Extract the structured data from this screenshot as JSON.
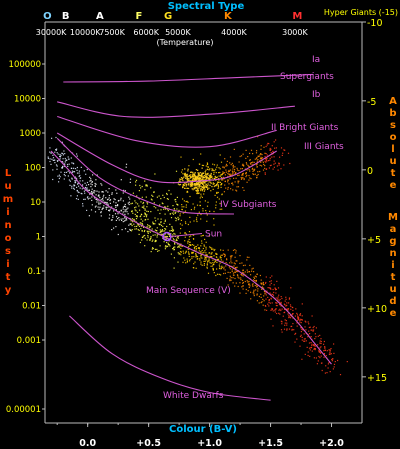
{
  "chart_data": {
    "type": "scatter",
    "title": "Spectral Type",
    "xlabel": "Colour (B-V)",
    "ylabel_left": "Luminosity",
    "ylabel_right": "Absolute Magnitude",
    "temperature_label": "(Temperature)",
    "hyper_giants_label": "Hyper Giants (-15)",
    "xlim": [
      -0.35,
      2.25
    ],
    "ylim_log_luminosity": [
      1e-05,
      100000
    ],
    "x_ticks": [
      {
        "value": 0.0,
        "label": "0.0"
      },
      {
        "value": 0.5,
        "label": "+0.5"
      },
      {
        "value": 1.0,
        "label": "+1.0"
      },
      {
        "value": 1.5,
        "label": "+1.5"
      },
      {
        "value": 2.0,
        "label": "+2.0"
      }
    ],
    "left_ticks": [
      {
        "value": 100000,
        "label": "100000"
      },
      {
        "value": 10000,
        "label": "10000"
      },
      {
        "value": 1000,
        "label": "1000"
      },
      {
        "value": 100,
        "label": "100"
      },
      {
        "value": 10,
        "label": "10"
      },
      {
        "value": 1,
        "label": "1"
      },
      {
        "value": 0.1,
        "label": "0.1"
      },
      {
        "value": 0.01,
        "label": "0.01"
      },
      {
        "value": 0.001,
        "label": "0.001"
      },
      {
        "value": 1e-05,
        "label": "0.00001"
      }
    ],
    "right_ticks": [
      {
        "magnitude": -10,
        "label": "-10"
      },
      {
        "magnitude": -5,
        "label": "-5"
      },
      {
        "magnitude": 0,
        "label": "0"
      },
      {
        "magnitude": 5,
        "label": "+5"
      },
      {
        "magnitude": 10,
        "label": "+10"
      },
      {
        "magnitude": 15,
        "label": "+15"
      }
    ],
    "spectral_types": [
      {
        "label": "O",
        "color": "#7fd4ff",
        "bv": -0.33
      },
      {
        "label": "B",
        "color": "#ffffff",
        "bv": -0.18
      },
      {
        "label": "A",
        "color": "#ffffff",
        "bv": 0.1
      },
      {
        "label": "F",
        "color": "#ffff66",
        "bv": 0.42
      },
      {
        "label": "G",
        "color": "#ffe020",
        "bv": 0.66
      },
      {
        "label": "K",
        "color": "#ff8800",
        "bv": 1.15
      },
      {
        "label": "M",
        "color": "#ff3030",
        "bv": 1.72
      }
    ],
    "temperatures": [
      {
        "label": "30000K",
        "bv": -0.3
      },
      {
        "label": "10000K",
        "bv": -0.02
      },
      {
        "label": "7500K",
        "bv": 0.2
      },
      {
        "label": "6000K",
        "bv": 0.48
      },
      {
        "label": "5000K",
        "bv": 0.74
      },
      {
        "label": "4000K",
        "bv": 1.2
      },
      {
        "label": "3000K",
        "bv": 1.7
      }
    ],
    "luminosity_classes": [
      {
        "label": "Ia",
        "lines": [
          "Ia",
          "Supergiants"
        ],
        "curve": [
          [
            -0.2,
            30000
          ],
          [
            0.5,
            32000
          ],
          [
            1.2,
            40000
          ],
          [
            1.85,
            50000
          ]
        ]
      },
      {
        "label": "Ib",
        "curve": [
          [
            -0.25,
            8000
          ],
          [
            0.3,
            3000
          ],
          [
            1.0,
            3500
          ],
          [
            1.7,
            6000
          ]
        ]
      },
      {
        "label": "II Bright Giants",
        "curve": [
          [
            -0.25,
            3000
          ],
          [
            0.4,
            600
          ],
          [
            1.0,
            400
          ],
          [
            1.55,
            1200
          ]
        ]
      },
      {
        "label": "III Giants",
        "curve": [
          [
            -0.25,
            1000
          ],
          [
            0.2,
            120
          ],
          [
            0.55,
            40
          ],
          [
            0.9,
            40
          ],
          [
            1.2,
            60
          ],
          [
            1.55,
            300
          ]
        ]
      },
      {
        "label": "IV Subgiants",
        "curve": [
          [
            -0.25,
            700
          ],
          [
            0.1,
            50
          ],
          [
            0.5,
            10
          ],
          [
            0.8,
            5
          ],
          [
            1.2,
            4.5
          ]
        ]
      },
      {
        "label": "Main Sequence (V)",
        "curve": [
          [
            -0.3,
            300
          ],
          [
            -0.15,
            80
          ],
          [
            0.0,
            20
          ],
          [
            0.3,
            4
          ],
          [
            0.6,
            1.1
          ],
          [
            0.9,
            0.35
          ],
          [
            1.2,
            0.12
          ],
          [
            1.5,
            0.02
          ],
          [
            1.7,
            0.004
          ],
          [
            1.85,
            0.0009
          ],
          [
            2.0,
            0.0002
          ]
        ]
      },
      {
        "label": "White Dwarfs",
        "curve": [
          [
            -0.15,
            0.005
          ],
          [
            0.2,
            0.0004
          ],
          [
            0.6,
            8e-05
          ],
          [
            1.0,
            3e-05
          ],
          [
            1.5,
            1.8e-05
          ]
        ]
      }
    ],
    "sun": {
      "label": "Sun",
      "bv": 0.65,
      "luminosity": 1
    }
  },
  "colors": {
    "background": "#000000",
    "title": "#00bfff",
    "tick_text": "#ffffff",
    "left_axis_label": "#ff4400",
    "right_axis_label": "#ff8800",
    "left_tick_text": "#ffff00",
    "right_tick_text": "#ffff00",
    "class_label": "#e060e0",
    "class_line": "#cc55cc",
    "axis": "#bbbbbb"
  }
}
